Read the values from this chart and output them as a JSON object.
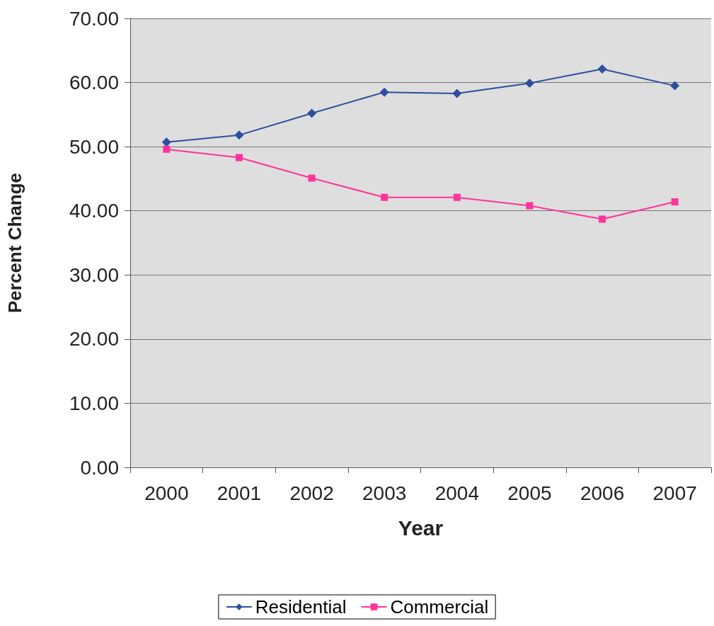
{
  "chart_data": {
    "type": "line",
    "xlabel": "Year",
    "ylabel": "Percent Change",
    "categories": [
      "2000",
      "2001",
      "2002",
      "2003",
      "2004",
      "2005",
      "2006",
      "2007"
    ],
    "series": [
      {
        "name": "Residential",
        "color": "#2e4f9e",
        "marker": "diamond",
        "values": [
          50.7,
          51.8,
          55.2,
          58.5,
          58.3,
          59.9,
          62.1,
          59.5
        ]
      },
      {
        "name": "Commercial",
        "color": "#ff3399",
        "marker": "square",
        "values": [
          49.6,
          48.3,
          45.1,
          42.1,
          42.1,
          40.8,
          38.7,
          41.4
        ]
      }
    ],
    "ylim": [
      0,
      70
    ],
    "yticks": [
      {
        "value": 0,
        "label": "0.00"
      },
      {
        "value": 10,
        "label": "10.00"
      },
      {
        "value": 20,
        "label": "20.00"
      },
      {
        "value": 30,
        "label": "30.00"
      },
      {
        "value": 40,
        "label": "40.00"
      },
      {
        "value": 50,
        "label": "50.00"
      },
      {
        "value": 60,
        "label": "60.00"
      },
      {
        "value": 70,
        "label": "70.00"
      }
    ],
    "grid": "y",
    "legend": "bottom",
    "line_style": "solid"
  }
}
